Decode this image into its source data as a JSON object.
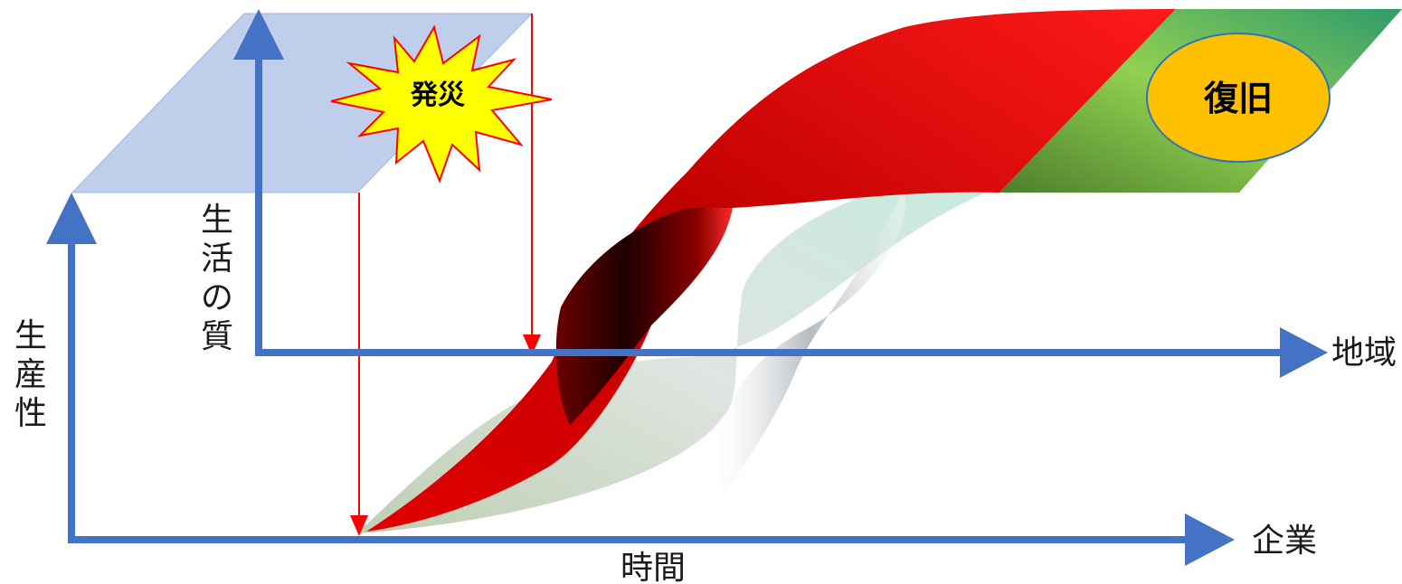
{
  "labels": {
    "disaster": "発災",
    "recovery": "復旧",
    "quality_of_life_chars": [
      "生",
      "活",
      "の",
      "質"
    ],
    "productivity_chars": [
      "生",
      "産",
      "性"
    ],
    "time": "時間",
    "region": "地域",
    "company": "企業"
  },
  "colors": {
    "axis": "#4472c4",
    "marker_line": "#ff0000",
    "plane": "#b4c7e7",
    "burst_fill": "#ffff00",
    "burst_stroke": "#ff0000",
    "ribbon_red": "#d40000",
    "recovery_band": "#70ad47",
    "recovery_ellipse_fill": "#ffc000",
    "recovery_ellipse_stroke": "#2e75b6"
  }
}
